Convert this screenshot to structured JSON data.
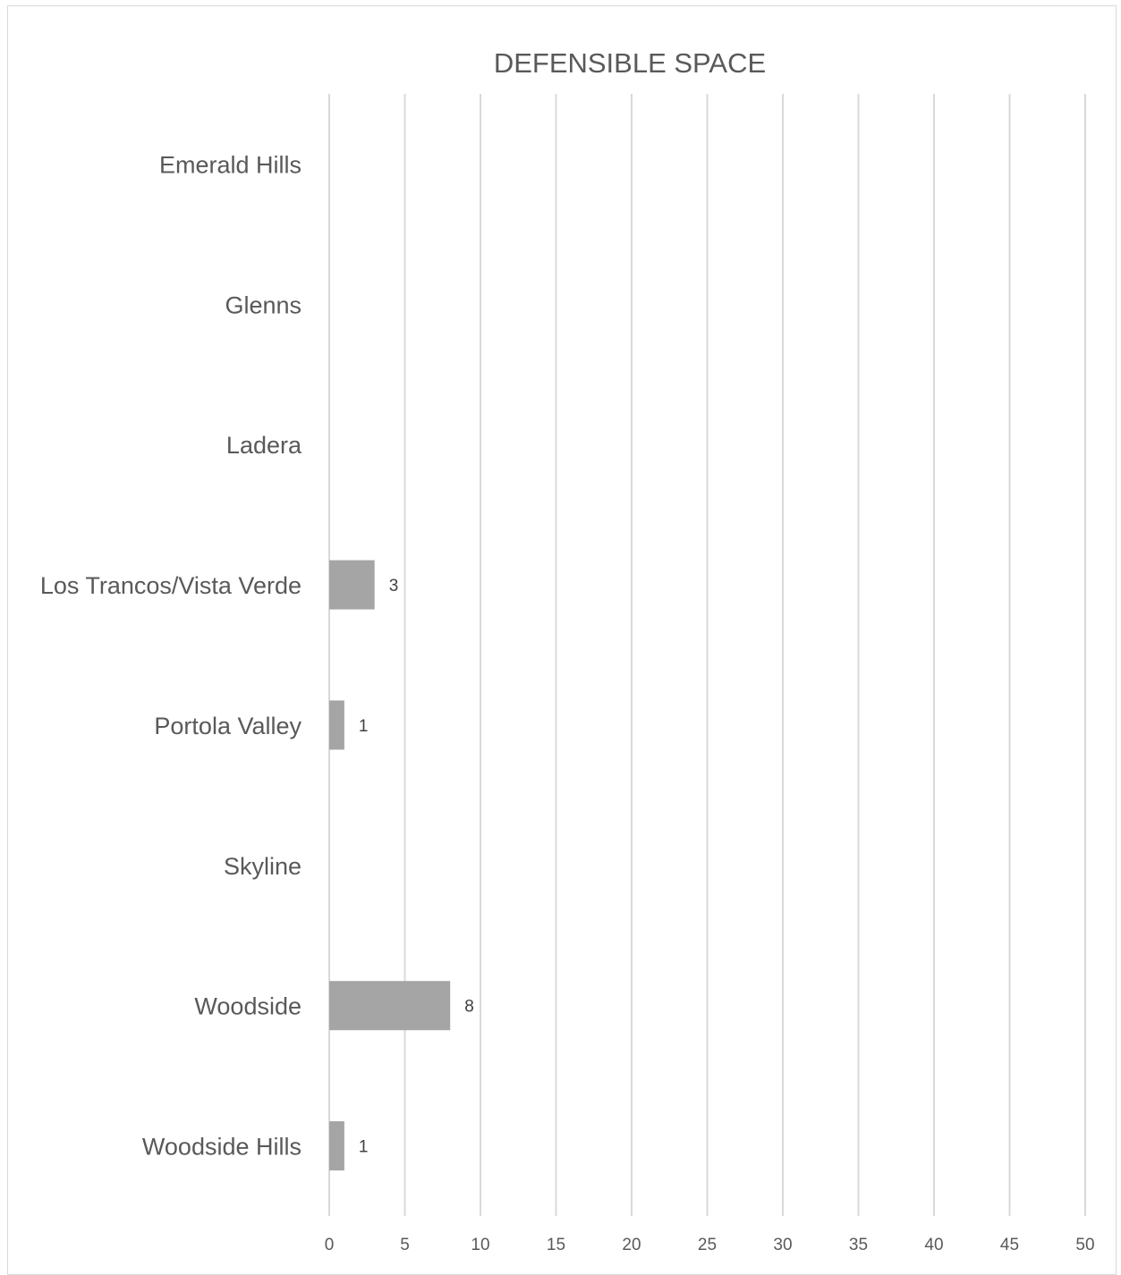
{
  "chart_data": {
    "type": "bar",
    "orientation": "horizontal",
    "title": "DEFENSIBLE SPACE",
    "categories": [
      "Emerald Hills",
      "Glenns",
      "Ladera",
      "Los Trancos/Vista Verde",
      "Portola Valley",
      "Skyline",
      "Woodside",
      "Woodside Hills"
    ],
    "values": [
      0,
      0,
      0,
      3,
      1,
      0,
      8,
      1
    ],
    "data_labels": [
      "",
      "",
      "",
      "3",
      "1",
      "",
      "8",
      "1"
    ],
    "xlim": [
      0,
      50
    ],
    "x_ticks": [
      "0",
      "5",
      "10",
      "15",
      "20",
      "25",
      "30",
      "35",
      "40",
      "45",
      "50"
    ],
    "grid": "vertical",
    "legend": "none",
    "bar_color": "#a5a5a5",
    "grid_color": "#d9d9d9",
    "text_color": "#595959"
  }
}
